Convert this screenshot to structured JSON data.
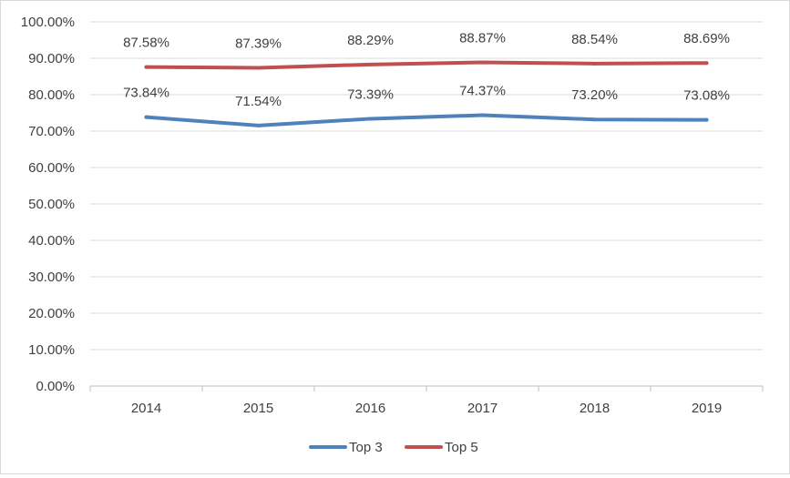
{
  "chart_data": {
    "type": "line",
    "title": "",
    "xlabel": "",
    "ylabel": "",
    "categories": [
      "2014",
      "2015",
      "2016",
      "2017",
      "2018",
      "2019"
    ],
    "ylim": [
      0,
      100
    ],
    "y_tick_labels": [
      "0.00%",
      "10.00%",
      "20.00%",
      "30.00%",
      "40.00%",
      "50.00%",
      "60.00%",
      "70.00%",
      "80.00%",
      "90.00%",
      "100.00%"
    ],
    "grid": true,
    "legend_position": "bottom",
    "series": [
      {
        "name": "Top 3",
        "color": "#4f81bd",
        "values": [
          73.84,
          71.54,
          73.39,
          74.37,
          73.2,
          73.08
        ],
        "labels": [
          "73.84%",
          "71.54%",
          "73.39%",
          "74.37%",
          "73.20%",
          "73.08%"
        ]
      },
      {
        "name": "Top 5",
        "color": "#c0504d",
        "values": [
          87.58,
          87.39,
          88.29,
          88.87,
          88.54,
          88.69
        ],
        "labels": [
          "87.58%",
          "87.39%",
          "88.29%",
          "88.87%",
          "88.54%",
          "88.69%"
        ]
      }
    ]
  }
}
